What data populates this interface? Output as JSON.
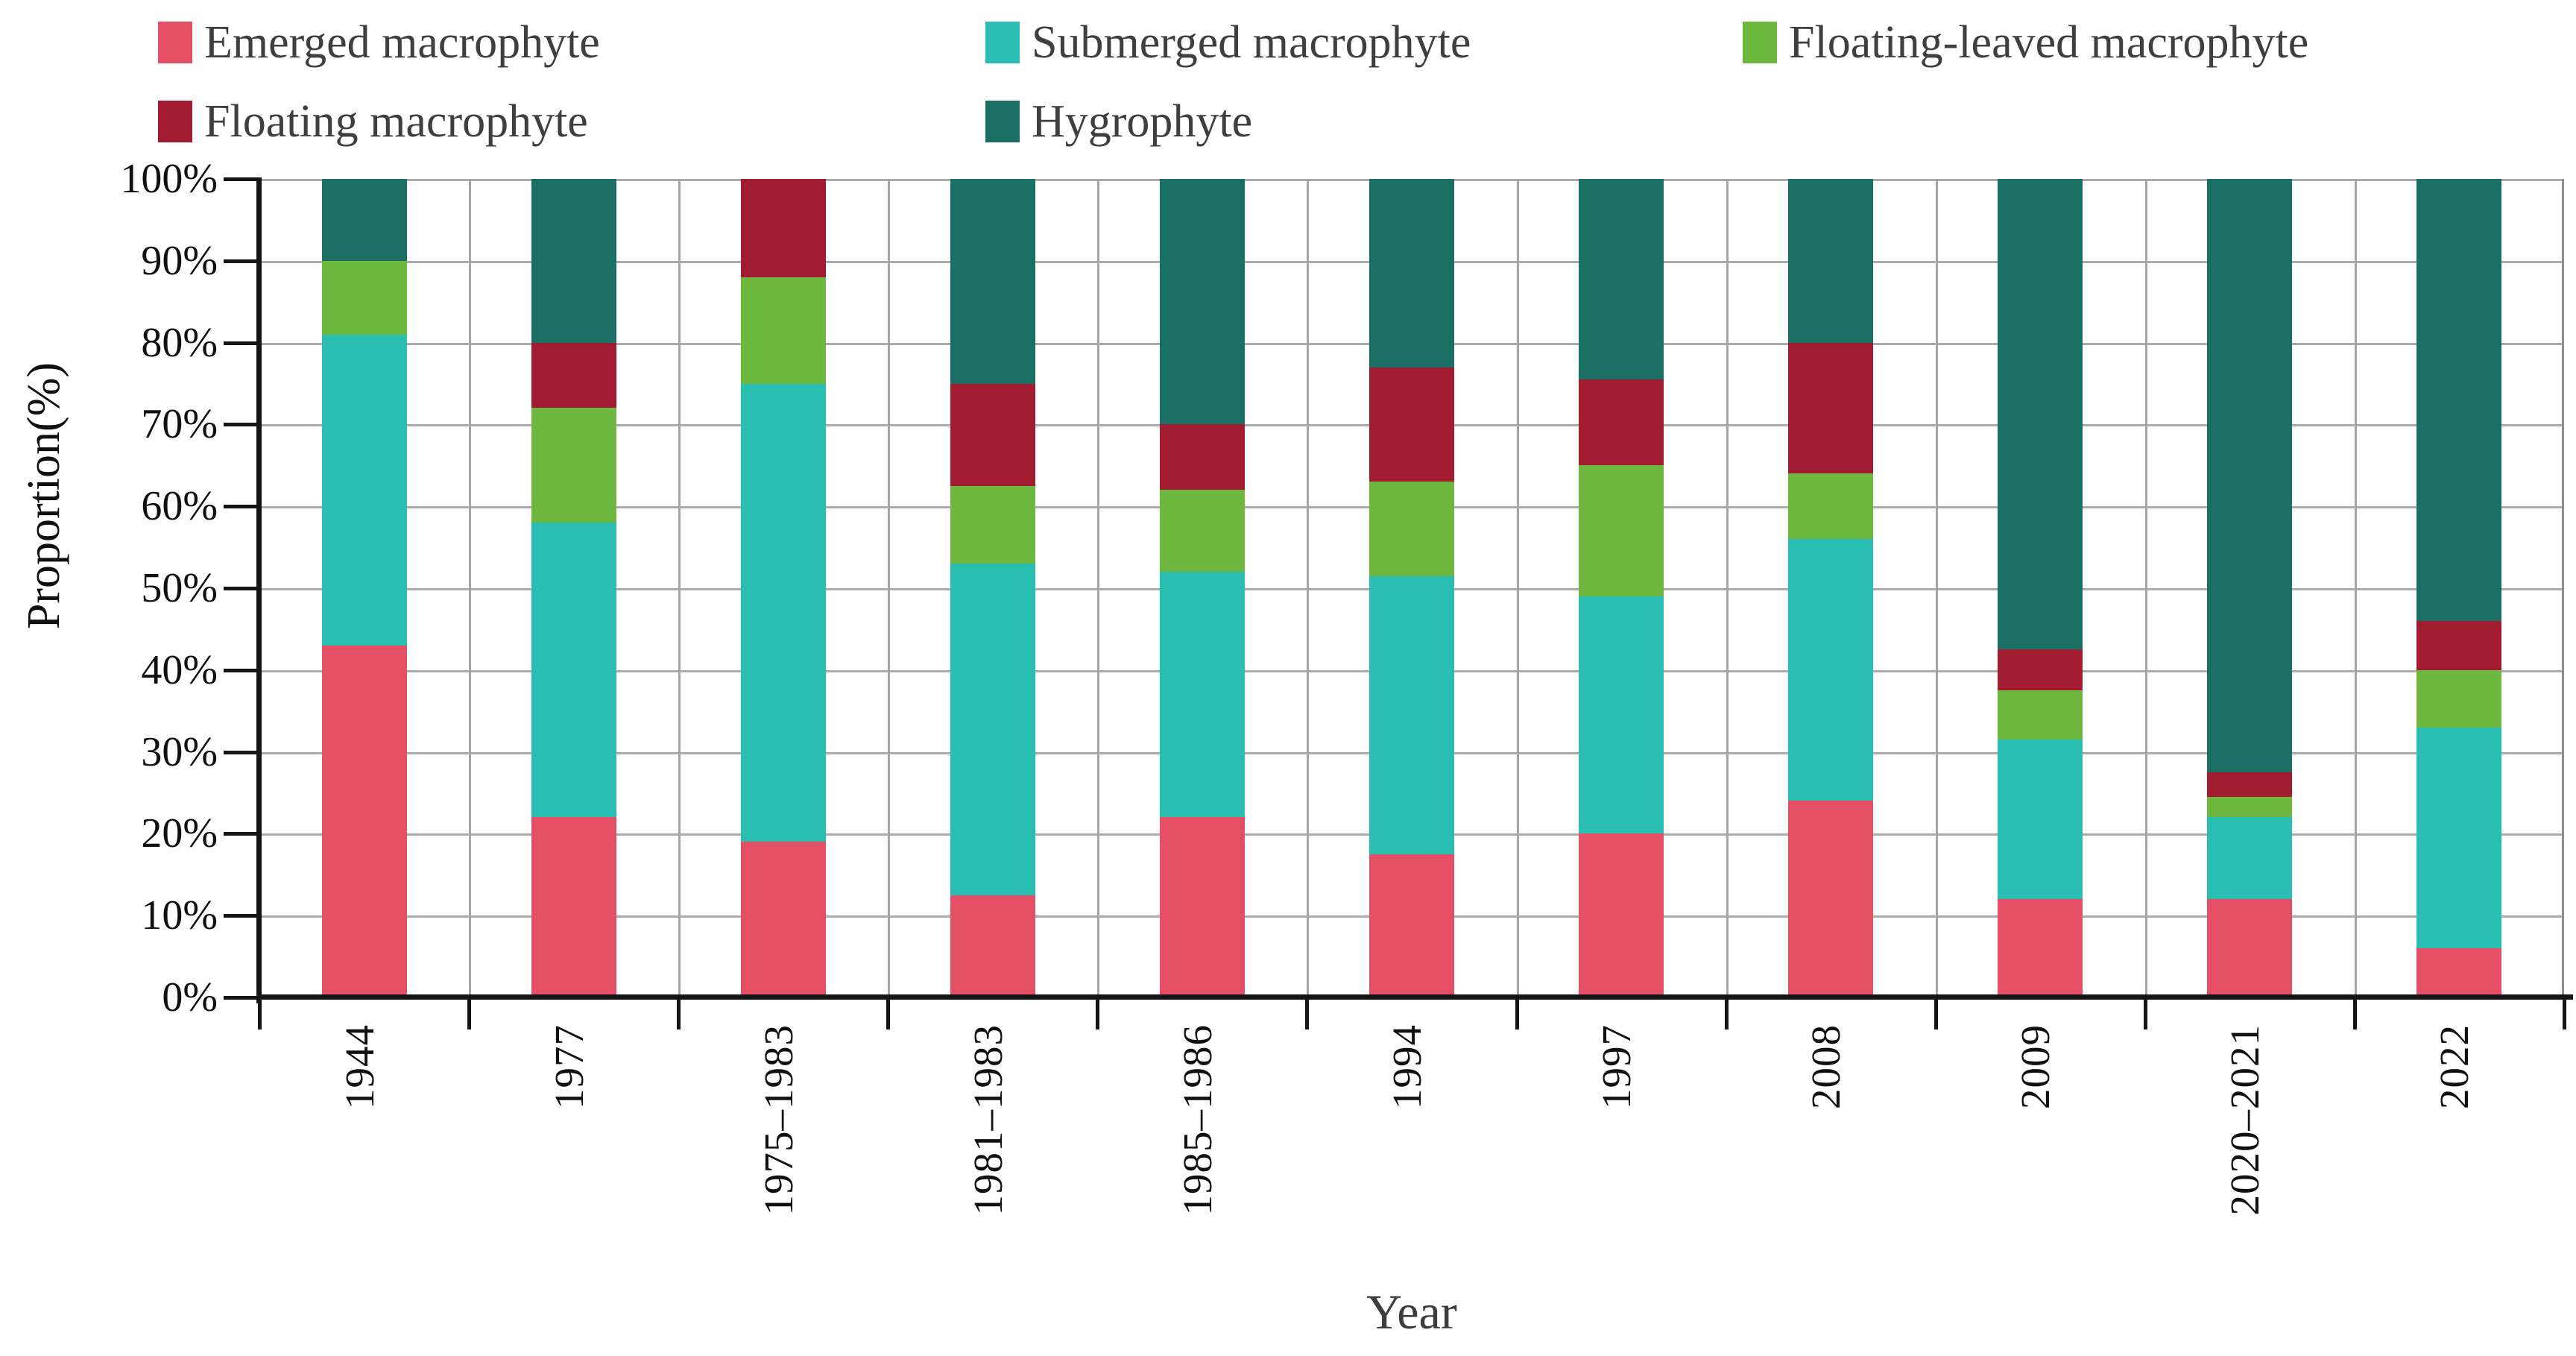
{
  "figure": {
    "y_axis": {
      "title": "Proportion(%)",
      "ticks": [
        {
          "label": "100%",
          "value": 100
        },
        {
          "label": "90%",
          "value": 90
        },
        {
          "label": "80%",
          "value": 80
        },
        {
          "label": "70%",
          "value": 70
        },
        {
          "label": "60%",
          "value": 60
        },
        {
          "label": "50%",
          "value": 50
        },
        {
          "label": "40%",
          "value": 40
        },
        {
          "label": "30%",
          "value": 30
        },
        {
          "label": "20%",
          "value": 20
        },
        {
          "label": "10%",
          "value": 10
        },
        {
          "label": "0%",
          "value": 0
        }
      ]
    },
    "x_axis": {
      "title": "Year"
    },
    "chart_data": {
      "type": "bar",
      "stacked": true,
      "grid": true,
      "legend_position": "top",
      "ylim": [
        0,
        100
      ],
      "categories": [
        "1944",
        "1977",
        "1975–1983",
        "1981–1983",
        "1985–1986",
        "1994",
        "1997",
        "2008",
        "2009",
        "2020–2021",
        "2022"
      ],
      "series": [
        {
          "name": "Emerged macrophyte",
          "color": "#e44f66",
          "values": [
            43,
            22,
            19,
            12.5,
            22,
            17.5,
            20,
            24,
            12,
            12,
            6
          ]
        },
        {
          "name": "Submerged macrophyte",
          "color": "#2abdb2",
          "values": [
            38,
            36,
            56,
            40.5,
            30,
            34,
            29,
            32,
            19.5,
            10,
            27
          ]
        },
        {
          "name": "Floating-leaved macrophyte",
          "color": "#6eb83f",
          "values": [
            9,
            14,
            13,
            9.5,
            10,
            11.5,
            16,
            8,
            6,
            2.5,
            7
          ]
        },
        {
          "name": "Floating macrophyte",
          "color": "#a11b31",
          "values": [
            0,
            8,
            12,
            12.5,
            8,
            14,
            10.5,
            16,
            5,
            3,
            6
          ]
        },
        {
          "name": "Hygrophyte",
          "color": "#1b6e64",
          "values": [
            10,
            20,
            0,
            25,
            30,
            23,
            24.5,
            20,
            57.5,
            72.5,
            54
          ]
        }
      ]
    }
  }
}
